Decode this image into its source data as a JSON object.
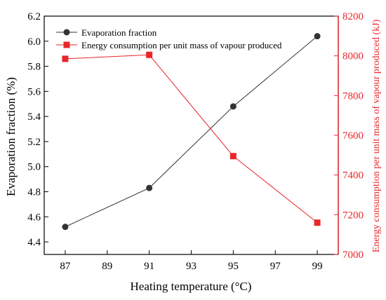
{
  "chart_data": {
    "type": "line",
    "xlabel": "Heating temperature (°C)",
    "x": [
      87,
      91,
      95,
      99
    ],
    "xlim": [
      86,
      100
    ],
    "xticks": [
      87,
      89,
      91,
      93,
      95,
      97,
      99
    ],
    "y_left": {
      "label": "Evaporation fraction (%)",
      "lim": [
        4.3,
        6.2
      ],
      "ticks": [
        4.4,
        4.6,
        4.8,
        5.0,
        5.2,
        5.4,
        5.6,
        5.8,
        6.0,
        6.2
      ]
    },
    "y_right": {
      "label": "Energy consumption per unit mass of vapour produced (kJ)",
      "lim": [
        7000,
        8200
      ],
      "ticks": [
        7000,
        7200,
        7400,
        7600,
        7800,
        8000,
        8200
      ],
      "color": "#e8262b"
    },
    "series": [
      {
        "name": "Evaporation fraction",
        "axis": "left",
        "marker": "circle",
        "color": "#333333",
        "values": [
          4.52,
          4.83,
          5.48,
          6.04
        ]
      },
      {
        "name": "Energy consumption per unit mass of vapour produced",
        "axis": "right",
        "marker": "square",
        "color": "#e8262b",
        "values": [
          7985,
          8005,
          7495,
          7160
        ]
      }
    ],
    "legend_position": "top-left",
    "grid": false
  }
}
